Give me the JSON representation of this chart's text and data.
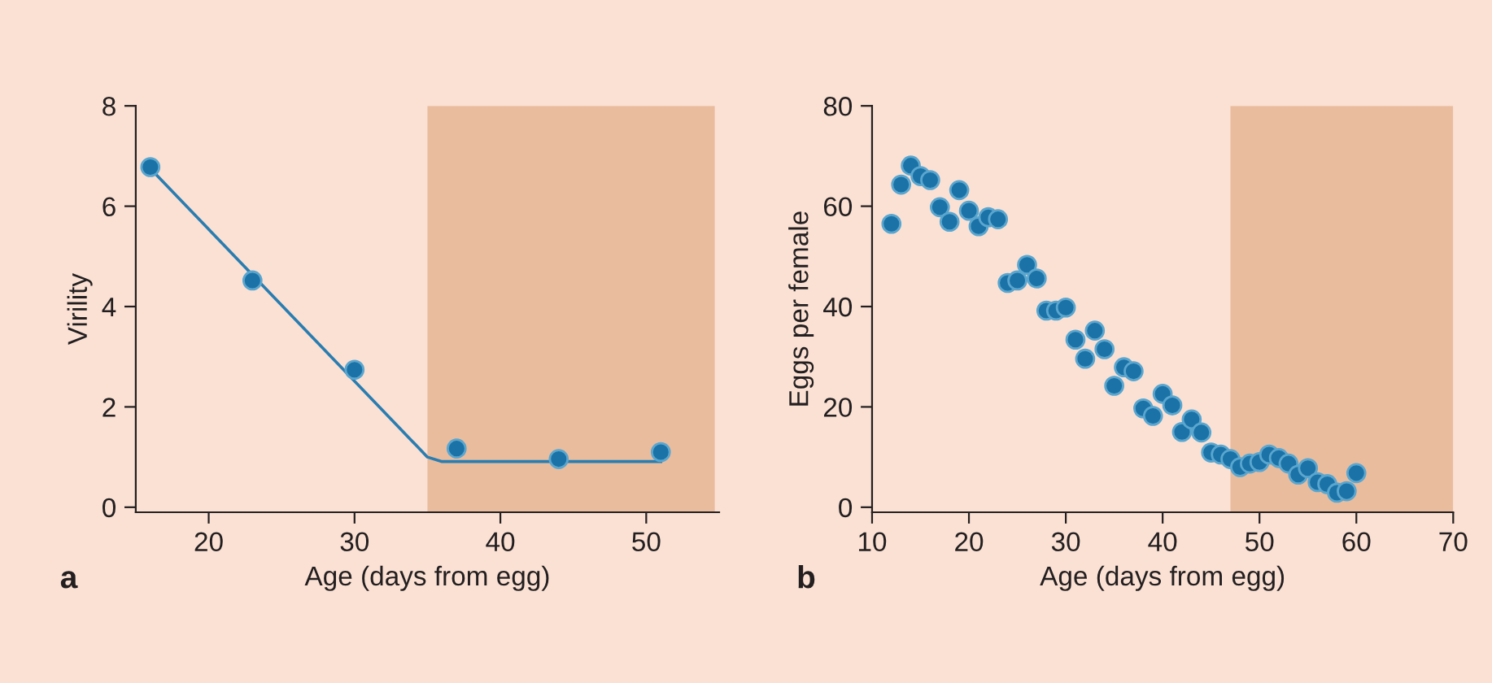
{
  "chart_data": [
    {
      "type": "scatter",
      "xlabel": "Age (days from egg)",
      "ylabel": "Virility",
      "annotations": [
        "a"
      ],
      "xlim": [
        15,
        55
      ],
      "ylim": [
        -0.1,
        8
      ],
      "xticks": [
        20,
        30,
        40,
        50
      ],
      "yticks": [
        0,
        2,
        4,
        6,
        8
      ],
      "grid": false,
      "legend": false,
      "marker": "circle",
      "bands": [
        {
          "axis": "x",
          "from": 35,
          "to": 54.7,
          "color": "#e9bc9e"
        }
      ],
      "series": [
        {
          "color": "#1a72a6",
          "x": [
            16,
            23,
            30,
            37,
            44,
            51
          ],
          "values": [
            6.78,
            4.52,
            2.74,
            1.17,
            0.96,
            1.1
          ]
        },
        {
          "type": "line",
          "color": "#2a7db0",
          "marker": "none",
          "x": [
            16,
            35,
            36,
            51
          ],
          "values": [
            6.75,
            1.0,
            0.91,
            0.91
          ]
        }
      ]
    },
    {
      "type": "scatter",
      "xlabel": "Age (days from egg)",
      "ylabel": "Eggs per female",
      "annotations": [
        "b"
      ],
      "xlim": [
        10,
        70
      ],
      "ylim": [
        -1,
        80
      ],
      "xticks": [
        10,
        20,
        30,
        40,
        50,
        60,
        70
      ],
      "yticks": [
        0,
        20,
        40,
        60,
        80
      ],
      "grid": false,
      "legend": false,
      "marker": "circle",
      "bands": [
        {
          "axis": "x",
          "from": 47,
          "to": 70,
          "color": "#e9bc9e"
        }
      ],
      "series": [
        {
          "color": "#1a72a6",
          "x": [
            12,
            13,
            14,
            15,
            16,
            17,
            18,
            19,
            20,
            21,
            22,
            23,
            24,
            25,
            26,
            27,
            28,
            29,
            30,
            31,
            32,
            33,
            34,
            35,
            36,
            37,
            38,
            39,
            40,
            41,
            42,
            43,
            44,
            45,
            46,
            47,
            48,
            49,
            50,
            51,
            52,
            53,
            54,
            55,
            56,
            57,
            58,
            59,
            60
          ],
          "values": [
            56.5,
            64.3,
            68.1,
            66.0,
            65.2,
            59.8,
            56.9,
            63.2,
            59.1,
            56.0,
            57.8,
            57.4,
            44.7,
            45.2,
            48.3,
            45.6,
            39.2,
            39.2,
            39.8,
            33.4,
            29.6,
            35.2,
            31.5,
            24.2,
            27.9,
            27.1,
            19.7,
            18.2,
            22.6,
            20.3,
            15.0,
            17.5,
            14.9,
            10.9,
            10.5,
            9.6,
            8.0,
            8.7,
            9.0,
            10.5,
            9.8,
            8.7,
            6.5,
            7.8,
            5.0,
            4.6,
            2.9,
            3.2,
            6.8
          ]
        }
      ]
    }
  ]
}
